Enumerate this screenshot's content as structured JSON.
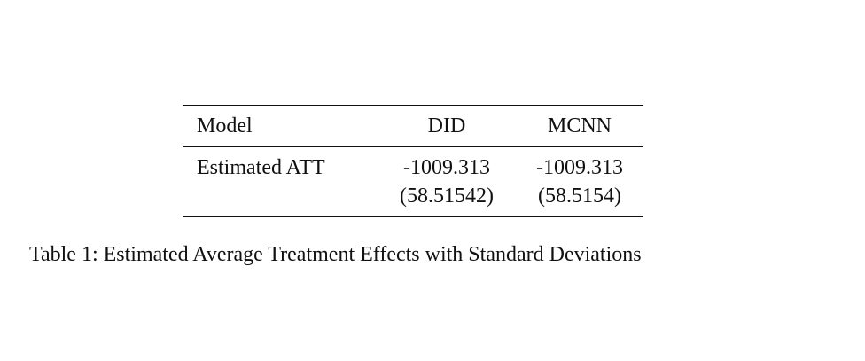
{
  "table": {
    "headers": {
      "model": "Model",
      "did": "DID",
      "mcnn": "MCNN"
    },
    "rows": [
      {
        "label": "Estimated ATT",
        "did_estimate": "-1009.313",
        "did_sd": "(58.51542)",
        "mcnn_estimate": "-1009.313",
        "mcnn_sd": "(58.5154)"
      }
    ]
  },
  "caption": "Table 1: Estimated Average Treatment Effects with Standard Deviations"
}
